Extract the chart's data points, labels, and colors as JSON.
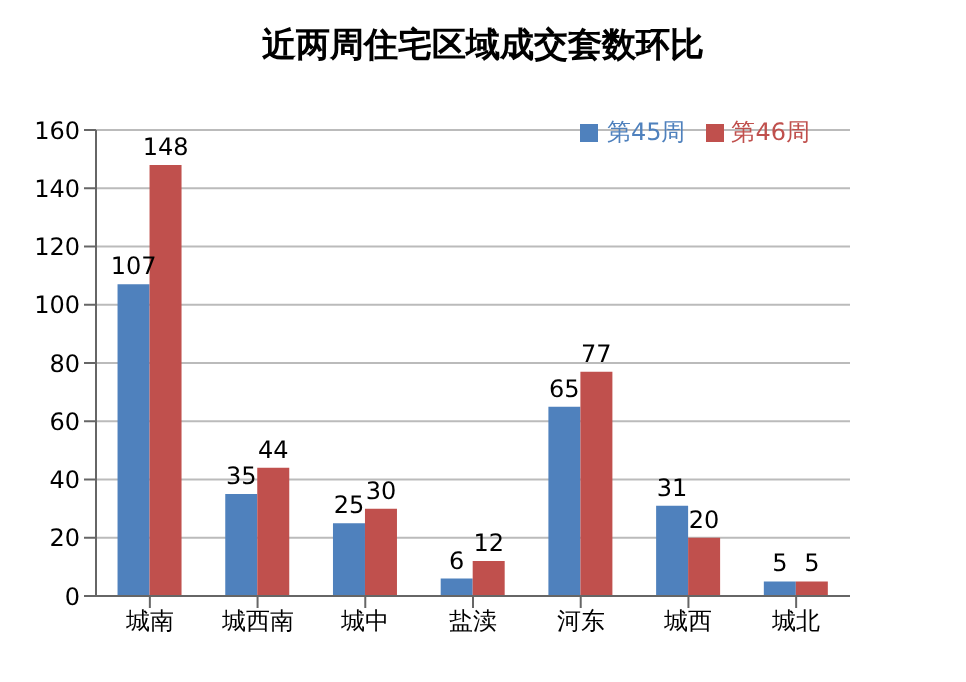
{
  "chart_data": {
    "type": "bar",
    "title": "近两周住宅区域成交套数环比",
    "categories": [
      "城南",
      "城西南",
      "城中",
      "盐渎",
      "河东",
      "城西",
      "城北"
    ],
    "series": [
      {
        "name": "第45周",
        "color": "#4f81bd",
        "values": [
          107,
          35,
          25,
          6,
          65,
          31,
          5
        ]
      },
      {
        "name": "第46周",
        "color": "#c0504d",
        "values": [
          148,
          44,
          30,
          12,
          77,
          20,
          5
        ]
      }
    ],
    "ylim": [
      0,
      160
    ],
    "yticks": [
      0,
      20,
      40,
      60,
      80,
      100,
      120,
      140,
      160
    ],
    "grid": "y",
    "legend": "top right",
    "data_labels": true
  }
}
